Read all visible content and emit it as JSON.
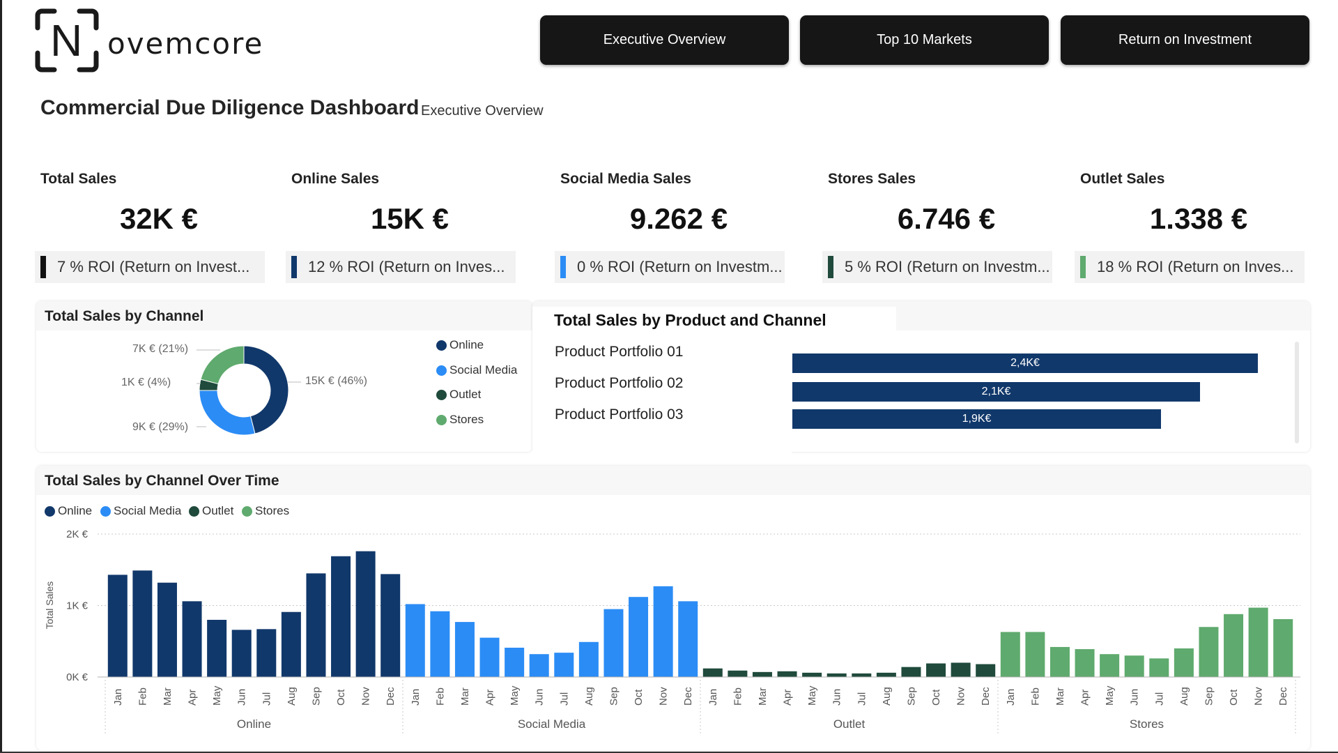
{
  "brand": {
    "logo_letter": "N",
    "logo_text": "ovemcore"
  },
  "nav": [
    {
      "label": "Executive Overview"
    },
    {
      "label": "Top 10 Markets"
    },
    {
      "label": "Return on Investment"
    }
  ],
  "header": {
    "title": "Commercial Due Diligence Dashboard",
    "subtitle": "Executive Overview"
  },
  "kpis": [
    {
      "label": "Total Sales",
      "value": "32K €",
      "roi": "7 % ROI (Return on Invest...",
      "color": "#111111"
    },
    {
      "label": "Online Sales",
      "value": "15K €",
      "roi": "12 % ROI (Return on Inves...",
      "color": "#11386b"
    },
    {
      "label": "Social Media Sales",
      "value": "9.262 €",
      "roi": "0 % ROI (Return on Investm...",
      "color": "#2b8cf5"
    },
    {
      "label": "Stores Sales",
      "value": "6.746 €",
      "roi": "5 % ROI (Return on Investm...",
      "color": "#1f4a3c"
    },
    {
      "label": "Outlet Sales",
      "value": "1.338 €",
      "roi": "18 % ROI (Return on Inves...",
      "color": "#5faa6e"
    }
  ],
  "colors": {
    "online": "#11386b",
    "social_media": "#2b8cf5",
    "outlet": "#1f4a3c",
    "stores": "#5faa6e"
  },
  "donut_panel": {
    "title": "Total Sales by Channel",
    "legend": [
      "Online",
      "Social Media",
      "Outlet",
      "Stores"
    ],
    "labels": {
      "stores": "7K € (21%)",
      "outlet": "1K € (4%)",
      "social_media": "9K € (29%)",
      "online": "15K € (46%)"
    }
  },
  "product_panel": {
    "title": "Total Sales by Product and Channel",
    "rows": [
      {
        "label": "Product Portfolio 01",
        "value_label": "2,4K€"
      },
      {
        "label": "Product Portfolio 02",
        "value_label": "2,1K€"
      },
      {
        "label": "Product Portfolio 03",
        "value_label": "1,9K€"
      }
    ]
  },
  "time_panel": {
    "title": "Total Sales by Channel Over Time",
    "legend": [
      "Online",
      "Social Media",
      "Outlet",
      "Stores"
    ],
    "ylabel": "Total Sales",
    "yticks": [
      "2K €",
      "1K €",
      "0K €"
    ],
    "months": [
      "Jan",
      "Feb",
      "Mar",
      "Apr",
      "May",
      "Jun",
      "Jul",
      "Aug",
      "Sep",
      "Oct",
      "Nov",
      "Dec"
    ]
  },
  "chart_data": [
    {
      "type": "pie",
      "title": "Total Sales by Channel",
      "categories": [
        "Online",
        "Social Media",
        "Outlet",
        "Stores"
      ],
      "values": [
        46,
        29,
        4,
        21
      ],
      "value_labels": [
        "15K € (46%)",
        "9K € (29%)",
        "1K € (4%)",
        "7K € (21%)"
      ],
      "legend": "right"
    },
    {
      "type": "bar",
      "title": "Total Sales by Product and Channel",
      "categories": [
        "Product Portfolio 01",
        "Product Portfolio 02",
        "Product Portfolio 03"
      ],
      "values": [
        2.4,
        2.1,
        1.9
      ],
      "orientation": "horizontal"
    },
    {
      "type": "bar",
      "title": "Total Sales by Channel Over Time",
      "ylabel": "Total Sales",
      "ylim": [
        0,
        2000
      ],
      "grid": true,
      "legend": "top-left",
      "groups": [
        "Online",
        "Social Media",
        "Outlet",
        "Stores"
      ],
      "categories": [
        "Jan",
        "Feb",
        "Mar",
        "Apr",
        "May",
        "Jun",
        "Jul",
        "Aug",
        "Sep",
        "Oct",
        "Nov",
        "Dec"
      ],
      "series": [
        {
          "name": "Online",
          "values": [
            1430,
            1490,
            1320,
            1060,
            800,
            660,
            670,
            910,
            1450,
            1690,
            1760,
            1440
          ]
        },
        {
          "name": "Social Media",
          "values": [
            1020,
            920,
            770,
            550,
            410,
            320,
            340,
            490,
            950,
            1120,
            1270,
            1060
          ]
        },
        {
          "name": "Outlet",
          "values": [
            120,
            90,
            70,
            80,
            60,
            50,
            50,
            60,
            140,
            190,
            200,
            180
          ]
        },
        {
          "name": "Stores",
          "values": [
            630,
            630,
            420,
            390,
            320,
            300,
            260,
            400,
            700,
            880,
            970,
            810
          ]
        }
      ]
    }
  ]
}
